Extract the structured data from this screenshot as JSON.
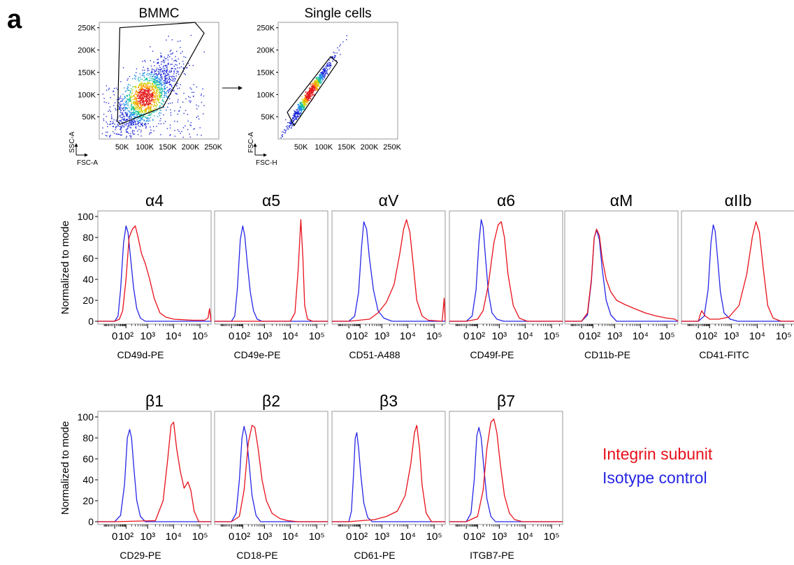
{
  "panel_label": "a",
  "colors": {
    "subunit": "#e8101a",
    "isotype": "#2626e6",
    "gate": "#000000",
    "frame": "#999999"
  },
  "legend": {
    "subunit_label": "Integrin subunit",
    "isotype_label": "Isotype control"
  },
  "arrow_icon": "right-arrow",
  "chart_data": [
    {
      "type": "scatter",
      "title": "BMMC",
      "xlabel": "FSC-A",
      "ylabel": "SSC-A",
      "xlim": [
        0,
        262144
      ],
      "ylim": [
        0,
        262144
      ],
      "x_ticks": [
        "50K",
        "100K",
        "150K",
        "200K",
        "250K"
      ],
      "y_ticks": [
        "50K",
        "100K",
        "150K",
        "200K",
        "250K"
      ],
      "density": {
        "center": [
          100000,
          95000
        ],
        "spread": [
          40000,
          45000
        ],
        "points": 1800
      },
      "gate": [
        [
          45000,
          250000
        ],
        [
          210000,
          262000
        ],
        [
          230000,
          238000
        ],
        [
          140000,
          72000
        ],
        [
          45000,
          33000
        ],
        [
          40000,
          40000
        ]
      ]
    },
    {
      "type": "scatter",
      "title": "Single cells",
      "xlabel": "FSC-H",
      "ylabel": "FSC-A",
      "xlim": [
        0,
        262144
      ],
      "ylim": [
        0,
        262144
      ],
      "x_ticks": [
        "50K",
        "100K",
        "150K",
        "200K",
        "250K"
      ],
      "y_ticks": [
        "50K",
        "100K",
        "150K",
        "200K",
        "250K"
      ],
      "density": {
        "center": [
          70000,
          105000
        ],
        "spread": [
          25000,
          40000
        ],
        "points": 900
      },
      "gate": [
        [
          20000,
          60000
        ],
        [
          115000,
          185000
        ],
        [
          130000,
          172000
        ],
        [
          35000,
          30000
        ]
      ]
    },
    {
      "type": "line",
      "title": "α4",
      "xlabel": "CD49d-PE",
      "ylabel": "Normalized to mode",
      "ylim": [
        0,
        100
      ],
      "y_ticks": [
        "0",
        "20",
        "40",
        "60",
        "80",
        "100"
      ],
      "x_ticks": [
        "0",
        "10²",
        "10³",
        "10⁴",
        "10⁵"
      ],
      "x_scale": "logicle",
      "series": [
        {
          "name": "Integrin subunit",
          "x": [
            0,
            30,
            60,
            100,
            150,
            220,
            300,
            400,
            550,
            800,
            1200,
            1800,
            3000,
            5000,
            10000,
            50000,
            150000,
            200000,
            230000
          ],
          "y": [
            0,
            2,
            10,
            40,
            80,
            88,
            91,
            80,
            65,
            55,
            40,
            22,
            8,
            4,
            2,
            1,
            1,
            3,
            12
          ]
        },
        {
          "name": "Isotype control",
          "x": [
            0,
            20,
            40,
            70,
            100,
            130,
            180,
            250,
            350,
            500,
            800
          ],
          "y": [
            0,
            5,
            30,
            75,
            91,
            85,
            60,
            32,
            12,
            3,
            0
          ]
        }
      ]
    },
    {
      "type": "line",
      "title": "α5",
      "xlabel": "CD49e-PE",
      "ylabel": "Normalized to mode",
      "ylim": [
        0,
        100
      ],
      "y_ticks": [
        "0",
        "20",
        "40",
        "60",
        "80",
        "100"
      ],
      "x_ticks": [
        "0",
        "10²",
        "10³",
        "10⁴",
        "10⁵"
      ],
      "x_scale": "logicle",
      "series": [
        {
          "name": "Integrin subunit",
          "x": [
            0,
            10000,
            15000,
            20000,
            25000,
            30000,
            35000,
            45000,
            70000
          ],
          "y": [
            0,
            0,
            8,
            50,
            97,
            60,
            15,
            2,
            0
          ]
        },
        {
          "name": "Isotype control",
          "x": [
            0,
            20,
            40,
            70,
            100,
            130,
            180,
            250,
            350,
            500,
            800
          ],
          "y": [
            0,
            5,
            30,
            78,
            91,
            82,
            55,
            28,
            10,
            2,
            0
          ]
        }
      ]
    },
    {
      "type": "line",
      "title": "αV",
      "xlabel": "CD51-A488",
      "ylabel": "Normalized to mode",
      "ylim": [
        0,
        100
      ],
      "y_ticks": [
        "0",
        "20",
        "40",
        "60",
        "80",
        "100"
      ],
      "x_ticks": [
        "0",
        "10²",
        "10³",
        "10⁴",
        "10⁵"
      ],
      "x_scale": "logicle",
      "series": [
        {
          "name": "Integrin subunit",
          "x": [
            0,
            300,
            700,
            1500,
            3000,
            5000,
            7000,
            9000,
            12000,
            16000,
            22000,
            35000,
            60000,
            200000,
            240000
          ],
          "y": [
            0,
            2,
            8,
            18,
            35,
            65,
            88,
            97,
            85,
            55,
            20,
            5,
            1,
            0,
            22
          ]
        },
        {
          "name": "Isotype control",
          "x": [
            0,
            40,
            80,
            120,
            160,
            220,
            300,
            450,
            700,
            1200,
            2500
          ],
          "y": [
            0,
            5,
            28,
            70,
            95,
            88,
            60,
            30,
            10,
            3,
            0
          ]
        }
      ]
    },
    {
      "type": "line",
      "title": "α6",
      "xlabel": "CD49f-PE",
      "ylabel": "Normalized to mode",
      "ylim": [
        0,
        100
      ],
      "y_ticks": [
        "0",
        "20",
        "40",
        "60",
        "80",
        "100"
      ],
      "x_ticks": [
        "0",
        "10²",
        "10³",
        "10⁴",
        "10⁵"
      ],
      "x_scale": "logicle",
      "series": [
        {
          "name": "Integrin subunit",
          "x": [
            0,
            100,
            200,
            350,
            600,
            900,
            1200,
            1600,
            2200,
            3500,
            6000,
            12000
          ],
          "y": [
            0,
            2,
            10,
            35,
            75,
            92,
            95,
            80,
            45,
            15,
            3,
            0
          ]
        },
        {
          "name": "Isotype control",
          "x": [
            0,
            40,
            80,
            120,
            160,
            200,
            260,
            350,
            500,
            800,
            1500
          ],
          "y": [
            0,
            5,
            30,
            75,
            97,
            90,
            60,
            28,
            8,
            2,
            0
          ]
        }
      ]
    },
    {
      "type": "line",
      "title": "αM",
      "xlabel": "CD11b-PE",
      "ylabel": "Normalized to mode",
      "ylim": [
        0,
        100
      ],
      "y_ticks": [
        "0",
        "20",
        "40",
        "60",
        "80",
        "100"
      ],
      "x_ticks": [
        "0",
        "10²",
        "10³",
        "10⁴",
        "10⁵"
      ],
      "x_scale": "logicle",
      "series": [
        {
          "name": "Integrin subunit",
          "x": [
            0,
            40,
            80,
            120,
            160,
            220,
            300,
            450,
            700,
            1200,
            2500,
            6000,
            15000,
            40000,
            100000,
            200000
          ],
          "y": [
            0,
            8,
            40,
            80,
            88,
            82,
            60,
            40,
            28,
            20,
            16,
            12,
            8,
            5,
            3,
            2
          ]
        },
        {
          "name": "Isotype control",
          "x": [
            0,
            40,
            80,
            120,
            160,
            220,
            300,
            450,
            700,
            1200
          ],
          "y": [
            0,
            6,
            38,
            80,
            87,
            78,
            50,
            20,
            6,
            0
          ]
        }
      ]
    },
    {
      "type": "line",
      "title": "αIIb",
      "xlabel": "CD41-FITC",
      "ylabel": "Normalized to mode",
      "ylim": [
        0,
        100
      ],
      "y_ticks": [
        "0",
        "20",
        "40",
        "60",
        "80",
        "100"
      ],
      "x_ticks": [
        "0",
        "10²",
        "10³",
        "10⁴",
        "10⁵"
      ],
      "x_scale": "logicle",
      "series": [
        {
          "name": "Integrin subunit",
          "x": [
            0,
            10,
            20,
            50,
            100,
            300,
            800,
            2000,
            4000,
            6500,
            9000,
            12000,
            17000,
            25000,
            40000,
            80000
          ],
          "y": [
            0,
            6,
            10,
            5,
            2,
            2,
            4,
            15,
            45,
            80,
            95,
            85,
            50,
            15,
            3,
            0
          ]
        },
        {
          "name": "Isotype control",
          "x": [
            0,
            40,
            80,
            120,
            160,
            200,
            260,
            350,
            500,
            900,
            1800
          ],
          "y": [
            0,
            5,
            30,
            75,
            92,
            86,
            60,
            28,
            8,
            2,
            0
          ]
        }
      ]
    },
    {
      "type": "line",
      "title": "β1",
      "xlabel": "CD29-PE",
      "ylabel": "Normalized to mode",
      "ylim": [
        0,
        100
      ],
      "y_ticks": [
        "0",
        "20",
        "40",
        "60",
        "80",
        "100"
      ],
      "x_ticks": [
        "0",
        "10²",
        "10³",
        "10⁴",
        "10⁵"
      ],
      "x_scale": "logicle",
      "series": [
        {
          "name": "Integrin subunit",
          "x": [
            0,
            2000,
            4000,
            6000,
            8000,
            10000,
            13000,
            18000,
            25000,
            35000,
            45000,
            60000,
            90000
          ],
          "y": [
            0,
            1,
            20,
            60,
            92,
            95,
            70,
            48,
            32,
            38,
            30,
            10,
            0
          ]
        },
        {
          "name": "Isotype control",
          "x": [
            0,
            40,
            80,
            120,
            160,
            200,
            260,
            350,
            500,
            800
          ],
          "y": [
            0,
            6,
            35,
            80,
            88,
            80,
            50,
            20,
            5,
            0
          ]
        }
      ]
    },
    {
      "type": "line",
      "title": "β2",
      "xlabel": "CD18-PE",
      "ylabel": "Normalized to mode",
      "ylim": [
        0,
        100
      ],
      "y_ticks": [
        "0",
        "20",
        "40",
        "60",
        "80",
        "100"
      ],
      "x_ticks": [
        "0",
        "10²",
        "10³",
        "10⁴",
        "10⁵"
      ],
      "x_scale": "logicle",
      "series": [
        {
          "name": "Integrin subunit",
          "x": [
            0,
            60,
            120,
            200,
            300,
            400,
            550,
            800,
            1200,
            2000,
            4000,
            8000,
            20000
          ],
          "y": [
            0,
            5,
            30,
            75,
            92,
            90,
            70,
            40,
            20,
            8,
            3,
            1,
            0
          ]
        },
        {
          "name": "Isotype control",
          "x": [
            0,
            30,
            60,
            90,
            120,
            160,
            220,
            300,
            450,
            700
          ],
          "y": [
            0,
            8,
            40,
            80,
            91,
            82,
            55,
            25,
            6,
            0
          ]
        }
      ]
    },
    {
      "type": "line",
      "title": "β3",
      "xlabel": "CD61-PE",
      "ylabel": "Normalized to mode",
      "ylim": [
        0,
        100
      ],
      "y_ticks": [
        "0",
        "20",
        "40",
        "60",
        "80",
        "100"
      ],
      "x_ticks": [
        "0",
        "10²",
        "10³",
        "10⁴",
        "10⁵"
      ],
      "x_scale": "logicle",
      "series": [
        {
          "name": "Integrin subunit",
          "x": [
            0,
            500,
            1500,
            4000,
            8000,
            13000,
            18000,
            22000,
            28000,
            35000,
            50000,
            80000
          ],
          "y": [
            0,
            2,
            5,
            10,
            25,
            55,
            85,
            92,
            70,
            35,
            8,
            0
          ]
        },
        {
          "name": "Isotype control",
          "x": [
            0,
            15,
            30,
            45,
            60,
            80,
            110,
            160,
            250,
            400
          ],
          "y": [
            0,
            10,
            45,
            80,
            85,
            70,
            45,
            18,
            4,
            0
          ]
        }
      ]
    },
    {
      "type": "line",
      "title": "β7",
      "xlabel": "ITGB7-PE",
      "ylabel": "Normalized to mode",
      "ylim": [
        0,
        100
      ],
      "y_ticks": [
        "0",
        "20",
        "40",
        "60",
        "80",
        "100"
      ],
      "x_ticks": [
        "0",
        "10²",
        "10³",
        "10⁴",
        "10⁵"
      ],
      "x_scale": "logicle",
      "series": [
        {
          "name": "Integrin subunit",
          "x": [
            0,
            100,
            200,
            300,
            450,
            600,
            800,
            1100,
            1600,
            2500,
            4000,
            8000
          ],
          "y": [
            0,
            5,
            30,
            70,
            95,
            98,
            85,
            55,
            25,
            8,
            2,
            0
          ]
        },
        {
          "name": "Isotype control",
          "x": [
            0,
            30,
            60,
            90,
            120,
            160,
            220,
            300,
            450,
            700
          ],
          "y": [
            0,
            8,
            40,
            82,
            90,
            80,
            50,
            22,
            5,
            0
          ]
        }
      ]
    }
  ]
}
